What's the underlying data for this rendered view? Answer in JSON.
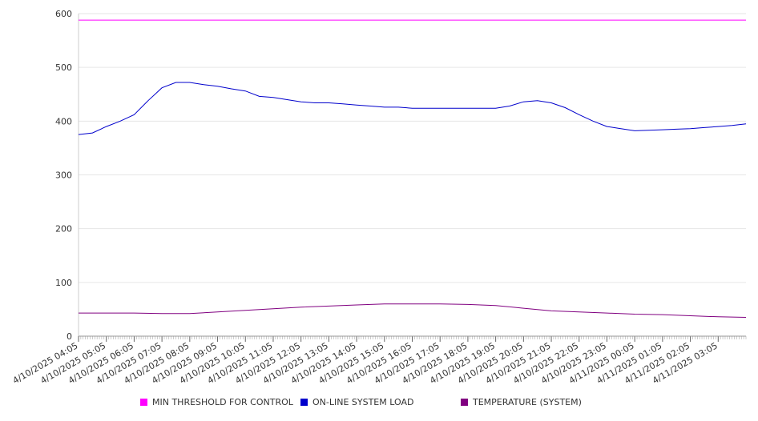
{
  "chart_data": {
    "type": "line",
    "title": "",
    "xlabel": "",
    "ylabel": "",
    "ylim": [
      0,
      600
    ],
    "yticks": [
      0,
      100,
      200,
      300,
      400,
      500,
      600
    ],
    "grid": true,
    "legend_position": "bottom",
    "x_tick_labels": [
      "4/10/2025 04:05",
      "4/10/2025 05:05",
      "4/10/2025 06:05",
      "4/10/2025 07:05",
      "4/10/2025 08:05",
      "4/10/2025 09:05",
      "4/10/2025 10:05",
      "4/10/2025 11:05",
      "4/10/2025 12:05",
      "4/10/2025 13:05",
      "4/10/2025 14:05",
      "4/10/2025 15:05",
      "4/10/2025 16:05",
      "4/10/2025 17:05",
      "4/10/2025 18:05",
      "4/10/2025 19:05",
      "4/10/2025 20:05",
      "4/10/2025 21:05",
      "4/10/2025 22:05",
      "4/10/2025 23:05",
      "4/11/2025 00:05",
      "4/11/2025 01:05",
      "4/11/2025 02:05",
      "4/11/2025 03:05"
    ],
    "series": [
      {
        "name": "MIN THRESHOLD FOR CONTROL",
        "color": "#ff00ff",
        "x": [
          "4/10/2025 04:05",
          "4/11/2025 04:05"
        ],
        "values": [
          588,
          588
        ]
      },
      {
        "name": "ON-LINE SYSTEM LOAD",
        "color": "#0000cc",
        "x": [
          "4/10/2025 04:05",
          "4/10/2025 04:35",
          "4/10/2025 05:05",
          "4/10/2025 05:35",
          "4/10/2025 06:05",
          "4/10/2025 06:35",
          "4/10/2025 07:05",
          "4/10/2025 07:35",
          "4/10/2025 08:05",
          "4/10/2025 08:35",
          "4/10/2025 09:05",
          "4/10/2025 09:35",
          "4/10/2025 10:05",
          "4/10/2025 10:35",
          "4/10/2025 11:05",
          "4/10/2025 11:35",
          "4/10/2025 12:05",
          "4/10/2025 12:35",
          "4/10/2025 13:05",
          "4/10/2025 13:35",
          "4/10/2025 14:05",
          "4/10/2025 14:35",
          "4/10/2025 15:05",
          "4/10/2025 15:35",
          "4/10/2025 16:05",
          "4/10/2025 16:35",
          "4/10/2025 17:05",
          "4/10/2025 17:35",
          "4/10/2025 18:05",
          "4/10/2025 18:35",
          "4/10/2025 19:05",
          "4/10/2025 19:35",
          "4/10/2025 20:05",
          "4/10/2025 20:35",
          "4/10/2025 21:05",
          "4/10/2025 21:35",
          "4/10/2025 22:05",
          "4/10/2025 22:35",
          "4/10/2025 23:05",
          "4/10/2025 23:35",
          "4/11/2025 00:05",
          "4/11/2025 00:35",
          "4/11/2025 01:05",
          "4/11/2025 01:35",
          "4/11/2025 02:05",
          "4/11/2025 02:35",
          "4/11/2025 03:05",
          "4/11/2025 03:35",
          "4/11/2025 04:05"
        ],
        "values": [
          375,
          378,
          390,
          400,
          412,
          438,
          462,
          472,
          472,
          468,
          465,
          460,
          456,
          446,
          444,
          440,
          436,
          434,
          434,
          432,
          430,
          428,
          426,
          426,
          424,
          424,
          424,
          424,
          424,
          424,
          424,
          428,
          436,
          438,
          434,
          425,
          412,
          400,
          390,
          386,
          382,
          383,
          384,
          385,
          386,
          388,
          390,
          392,
          395
        ]
      },
      {
        "name": "TEMPERATURE (SYSTEM)",
        "color": "#800080",
        "x": [
          "4/10/2025 04:05",
          "4/10/2025 05:05",
          "4/10/2025 06:05",
          "4/10/2025 07:05",
          "4/10/2025 08:05",
          "4/10/2025 09:05",
          "4/10/2025 10:05",
          "4/10/2025 11:05",
          "4/10/2025 12:05",
          "4/10/2025 13:05",
          "4/10/2025 14:05",
          "4/10/2025 15:05",
          "4/10/2025 16:05",
          "4/10/2025 17:05",
          "4/10/2025 18:05",
          "4/10/2025 19:05",
          "4/10/2025 20:05",
          "4/10/2025 21:05",
          "4/10/2025 22:05",
          "4/10/2025 23:05",
          "4/11/2025 00:05",
          "4/11/2025 01:05",
          "4/11/2025 02:05",
          "4/11/2025 03:05",
          "4/11/2025 04:05"
        ],
        "values": [
          43,
          43,
          43,
          42,
          42,
          45,
          48,
          51,
          54,
          56,
          58,
          60,
          60,
          60,
          59,
          57,
          52,
          47,
          45,
          43,
          41,
          40,
          38,
          36,
          35
        ]
      }
    ]
  }
}
